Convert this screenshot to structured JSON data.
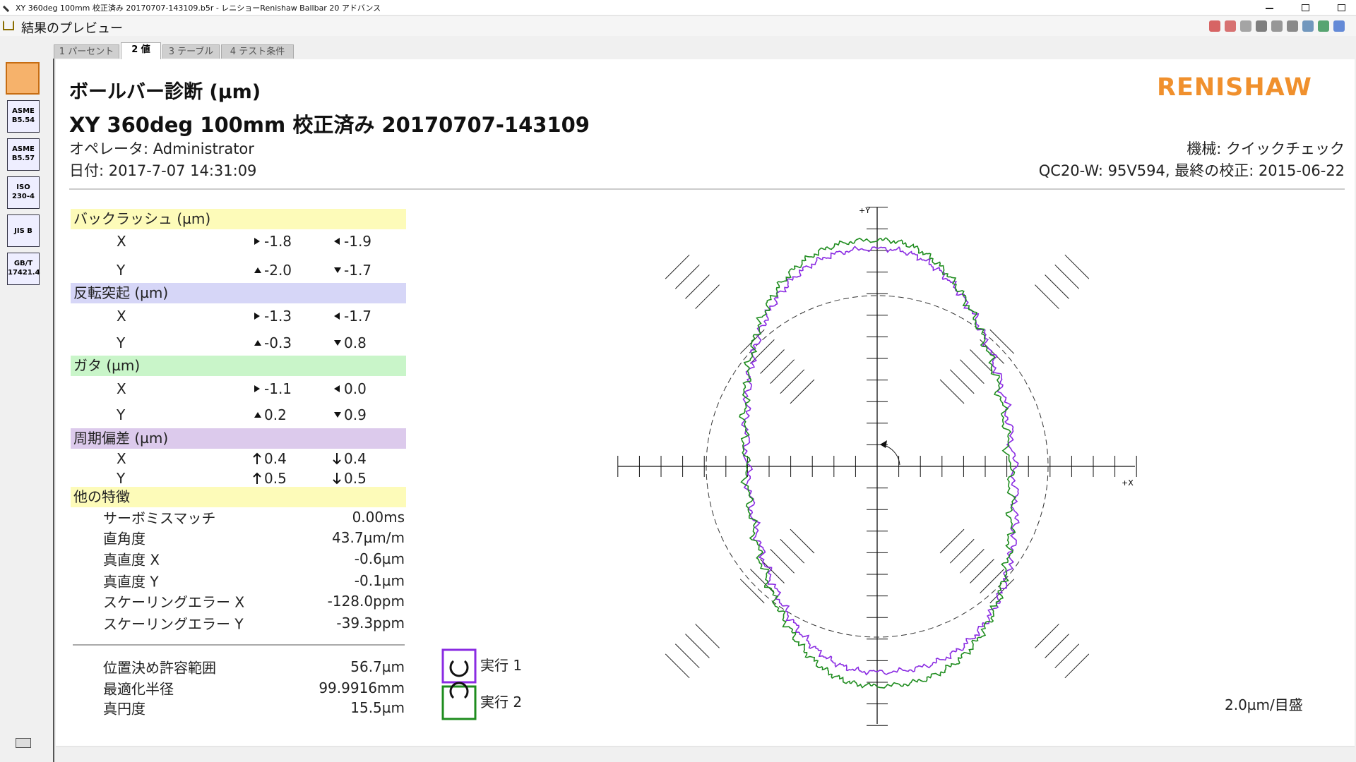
{
  "window": {
    "title": "XY 360deg 100mm 校正済み 20170707-143109.b5r - レニショーRenishaw Ballbar 20 アドバンス",
    "toolbar_title": "結果のプレビュー"
  },
  "tabs": [
    "1 パーセント",
    "2 値",
    "3 テーブル",
    "4 テスト条件"
  ],
  "sidebar": [
    [
      "ASME",
      "B5.54"
    ],
    [
      "ASME",
      "B5.57"
    ],
    [
      "ISO",
      "230-4"
    ],
    [
      "JIS B"
    ],
    [
      "GB/T",
      "17421.4"
    ]
  ],
  "report": {
    "title": "ボールバー診断 (µm)",
    "subtitle": "XY 360deg 100mm 校正済み 20170707-143109",
    "operator": "オペレータ: Administrator",
    "date": "日付: 2017-7-07 14:31:09",
    "brand": "RENISHAW",
    "machine": "機械: クイックチェック",
    "device": "QC20-W: 95V594, 最終の校正: 2015-06-22"
  },
  "sections": [
    {
      "title": "バックラッシュ (µm)",
      "rows": [
        {
          "axis": "X",
          "values": [
            "-1.8",
            "-1.9"
          ]
        },
        {
          "axis": "Y",
          "values": [
            "-2.0",
            "-1.7"
          ]
        }
      ]
    },
    {
      "title": "反転突起 (µm)",
      "rows": [
        {
          "axis": "X",
          "values": [
            "-1.3",
            "-1.7"
          ]
        },
        {
          "axis": "Y",
          "values": [
            "-0.3",
            "0.8"
          ]
        }
      ]
    },
    {
      "title": "ガタ (µm)",
      "rows": [
        {
          "axis": "X",
          "values": [
            "-1.1",
            "0.0"
          ]
        },
        {
          "axis": "Y",
          "values": [
            "0.2",
            "0.9"
          ]
        }
      ]
    },
    {
      "title": "周期偏差 (µm)",
      "rows": [
        {
          "axis": "X",
          "values": [
            "0.4",
            "0.4"
          ]
        },
        {
          "axis": "Y",
          "values": [
            "0.5",
            "0.5"
          ]
        }
      ]
    }
  ],
  "other": {
    "title": "他の特徴",
    "items": [
      {
        "label": "サーボミスマッチ",
        "value": "0.00ms"
      },
      {
        "label": "直角度",
        "value": "43.7µm/m"
      },
      {
        "label": "真直度 X",
        "value": "-0.6µm"
      },
      {
        "label": "真直度 Y",
        "value": "-0.1µm"
      },
      {
        "label": "スケーリングエラー X",
        "value": "-128.0ppm"
      },
      {
        "label": "スケーリングエラー Y",
        "value": "-39.3ppm"
      }
    ]
  },
  "summary": [
    {
      "label": "位置決め許容範囲",
      "value": "56.7µm"
    },
    {
      "label": "最適化半径",
      "value": "99.9916mm"
    },
    {
      "label": "真円度",
      "value": "15.5µm"
    }
  ],
  "plot": {
    "y_label": "+Y",
    "x_label": "+X",
    "legend": [
      "実行 1",
      "実行 2"
    ],
    "scale": "2.0µm/目盛"
  }
}
